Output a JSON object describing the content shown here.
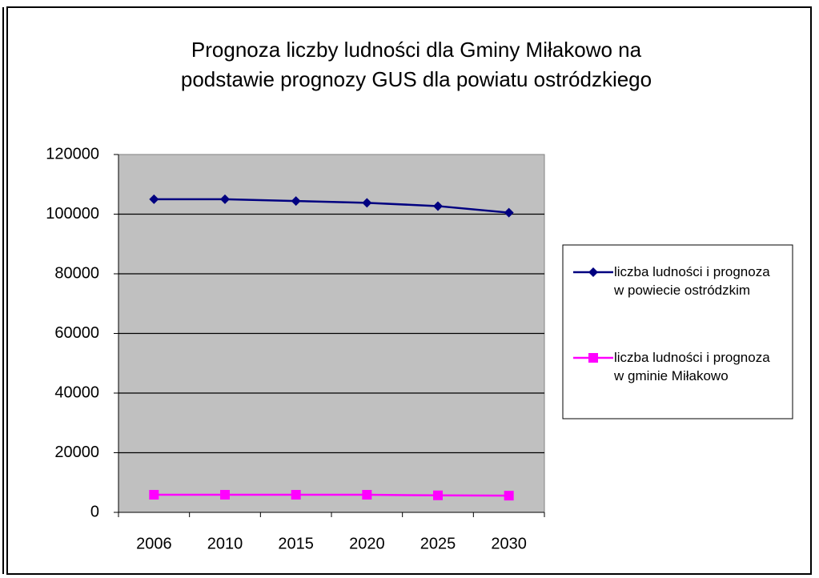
{
  "chart_data": {
    "type": "line",
    "title": [
      "Prognoza liczby ludności dla Gminy Miłakowo na",
      "podstawie prognozy GUS dla powiatu ostródzkiego"
    ],
    "categories": [
      "2006",
      "2010",
      "2015",
      "2020",
      "2025",
      "2030"
    ],
    "series": [
      {
        "name": "liczba ludności i prognoza w powiecie ostródzkim",
        "color": "#000080",
        "marker": "diamond",
        "values": [
          105000,
          105000,
          104400,
          103800,
          102700,
          100500
        ]
      },
      {
        "name": "liczba ludności i prognoza w gminie Miłakowo",
        "color": "#ff00ff",
        "marker": "square",
        "values": [
          5900,
          5900,
          5900,
          5900,
          5700,
          5600
        ]
      }
    ],
    "ylim": [
      0,
      120000
    ],
    "yticks": [
      0,
      20000,
      40000,
      60000,
      80000,
      100000,
      120000
    ],
    "grid": true,
    "legend": "right"
  }
}
